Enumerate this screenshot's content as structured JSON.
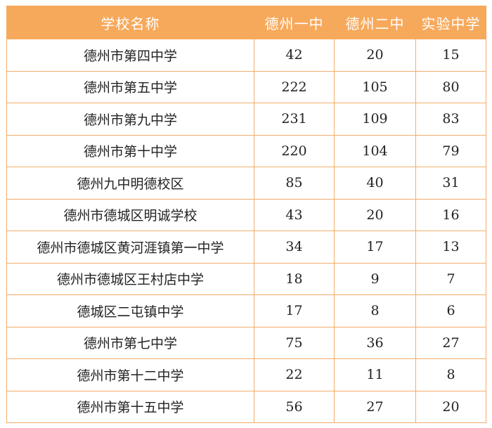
{
  "table": {
    "headers": [
      "学校名称",
      "德州一中",
      "德州二中",
      "实验中学"
    ],
    "rows": [
      {
        "school": "德州市第四中学",
        "a": "42",
        "b": "20",
        "c": "15"
      },
      {
        "school": "德州市第五中学",
        "a": "222",
        "b": "105",
        "c": "80"
      },
      {
        "school": "德州市第九中学",
        "a": "231",
        "b": "109",
        "c": "83"
      },
      {
        "school": "德州市第十中学",
        "a": "220",
        "b": "104",
        "c": "79"
      },
      {
        "school": "德州九中明德校区",
        "a": "85",
        "b": "40",
        "c": "31"
      },
      {
        "school": "德州市德城区明诚学校",
        "a": "43",
        "b": "20",
        "c": "16"
      },
      {
        "school": "德州市德城区黄河涯镇第一中学",
        "a": "34",
        "b": "17",
        "c": "13"
      },
      {
        "school": "德州市德城区王村店中学",
        "a": "18",
        "b": "9",
        "c": "7"
      },
      {
        "school": "德城区二屯镇中学",
        "a": "17",
        "b": "8",
        "c": "6"
      },
      {
        "school": "德州市第七中学",
        "a": "75",
        "b": "36",
        "c": "27"
      },
      {
        "school": "德州市第十二中学",
        "a": "22",
        "b": "11",
        "c": "8"
      },
      {
        "school": "德州市第十五中学",
        "a": "56",
        "b": "27",
        "c": "20"
      }
    ]
  },
  "colors": {
    "header_bg": "#f7a95b",
    "header_text": "#ffffff",
    "border": "#f3ad6a"
  }
}
